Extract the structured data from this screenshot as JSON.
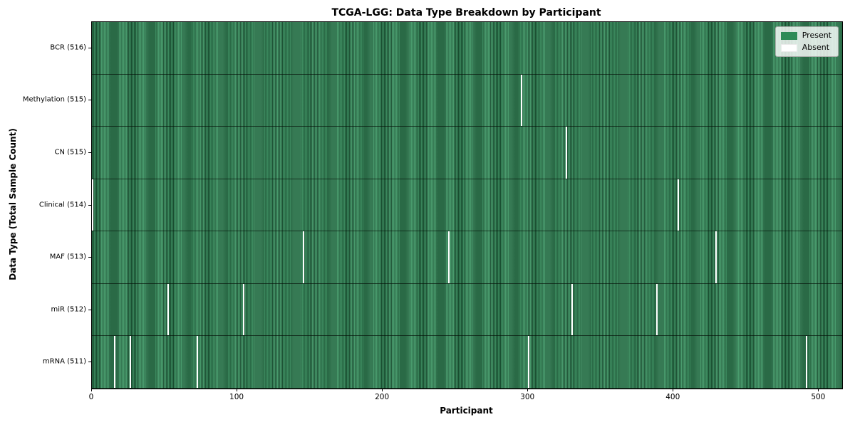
{
  "title": "TCGA-LGG: Data Type Breakdown by Participant",
  "colors": {
    "present": "#2e8b57",
    "absent": "#ffffff",
    "spine": "#000000",
    "figure_background": "#ffffff"
  },
  "chart_data": {
    "type": "heatmap",
    "title": "TCGA-LGG: Data Type Breakdown by Participant",
    "xlabel": "Participant",
    "ylabel": "Data Type (Total Sample Count)",
    "x_range": [
      0,
      516
    ],
    "x_ticks": [
      0,
      100,
      200,
      300,
      400,
      500
    ],
    "x_tick_labels": [
      "0",
      "100",
      "200",
      "300",
      "400",
      "500"
    ],
    "grid": false,
    "legend_position": "upper right",
    "legend": [
      {
        "label": "Present",
        "color": "#2e8b57"
      },
      {
        "label": "Absent",
        "color": "#ffffff"
      }
    ],
    "rows": [
      {
        "label": "BCR (516)",
        "data_type": "BCR",
        "present_count": 516,
        "absent_participants": []
      },
      {
        "label": "Methylation (515)",
        "data_type": "Methylation",
        "present_count": 515,
        "absent_participants": [
          295
        ]
      },
      {
        "label": "CN (515)",
        "data_type": "CN",
        "present_count": 515,
        "absent_participants": [
          326
        ]
      },
      {
        "label": "Clinical (514)",
        "data_type": "Clinical",
        "present_count": 514,
        "absent_participants": [
          0,
          403
        ]
      },
      {
        "label": "MAF (513)",
        "data_type": "MAF",
        "present_count": 513,
        "absent_participants": [
          145,
          245,
          429
        ]
      },
      {
        "label": "miR (512)",
        "data_type": "miR",
        "present_count": 512,
        "absent_participants": [
          52,
          104,
          330,
          388
        ]
      },
      {
        "label": "mRNA (511)",
        "data_type": "mRNA",
        "present_count": 511,
        "absent_participants": [
          15,
          26,
          72,
          300,
          491
        ]
      }
    ]
  }
}
